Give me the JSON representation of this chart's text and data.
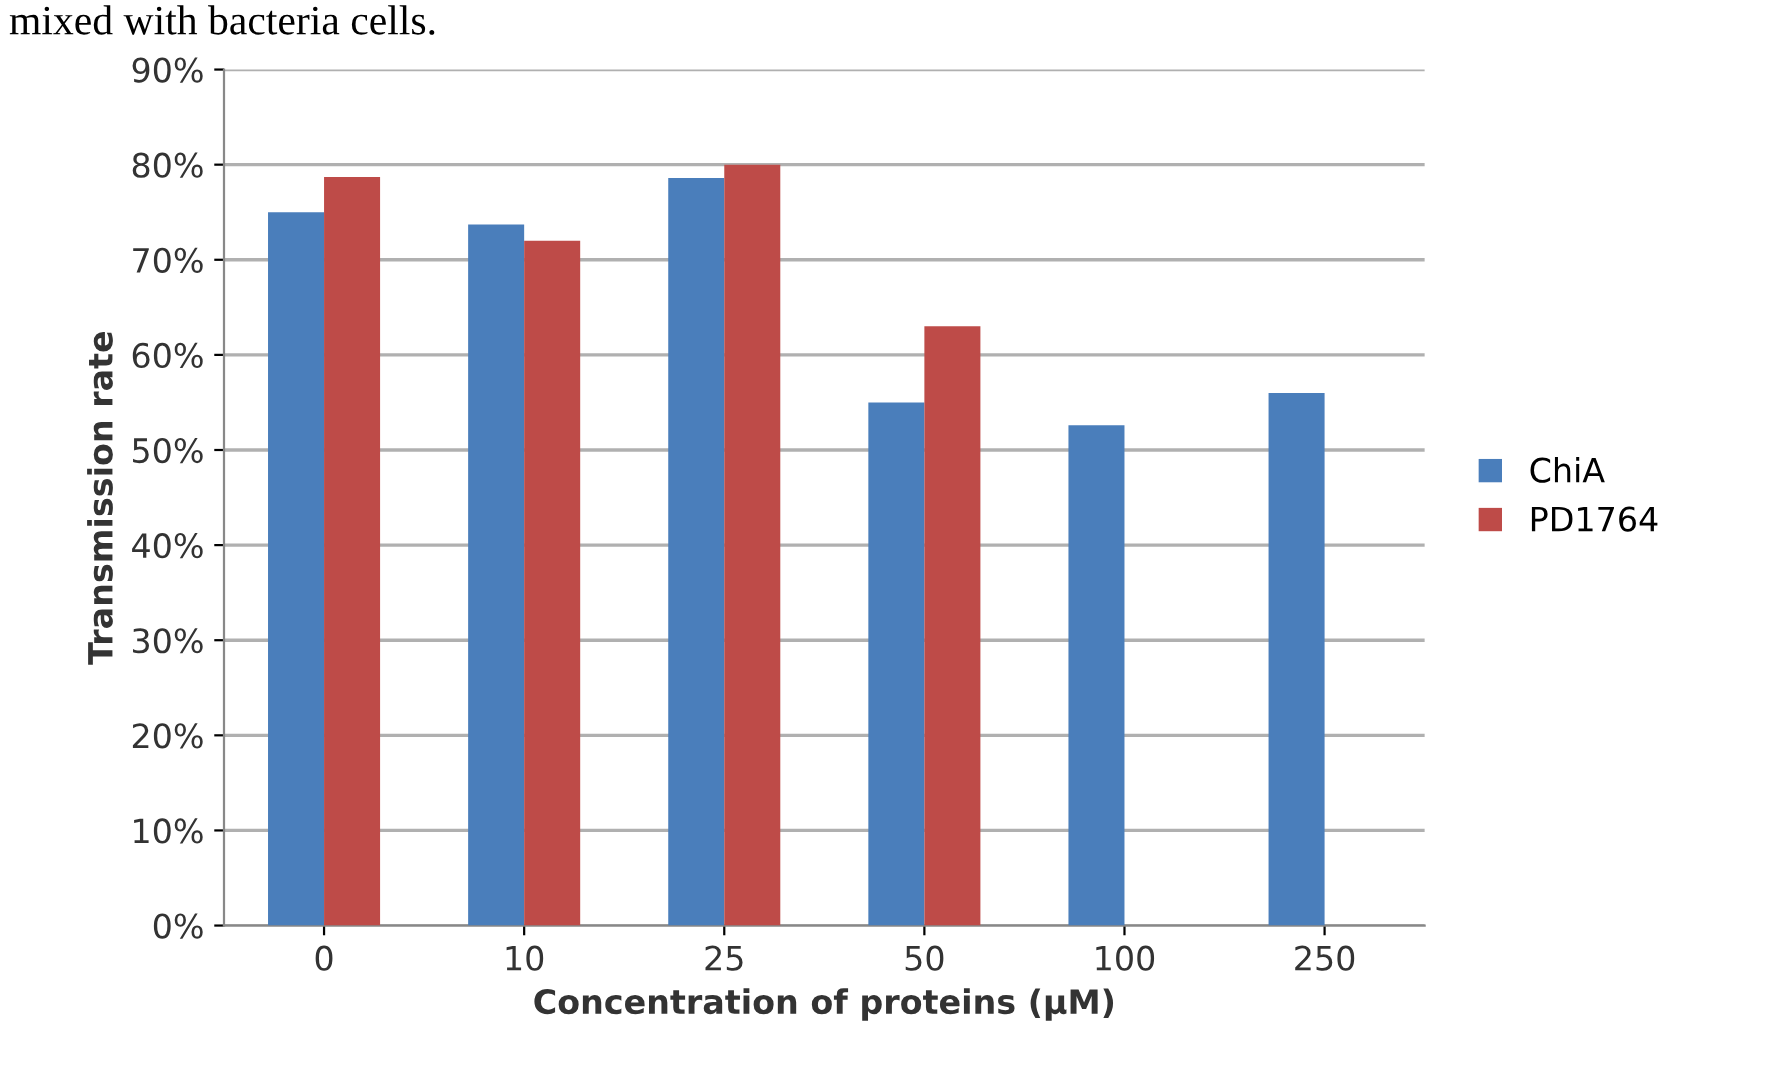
{
  "chart_data": {
    "type": "bar",
    "xlabel": "Concentration of proteins (μM)",
    "ylabel": "Transmission rate",
    "annotations": [
      "mixed with bacteria cells."
    ],
    "categories": [
      "0",
      "10",
      "25",
      "50",
      "100",
      "250"
    ],
    "series": [
      {
        "name": "ChiA",
        "color": "#4a7ebb",
        "values": [
          75,
          73.7,
          78.6,
          55,
          52.6,
          56
        ]
      },
      {
        "name": "PD1764",
        "color": "#be4b48",
        "values": [
          78.7,
          72,
          80,
          63,
          null,
          null
        ]
      }
    ],
    "ylim": [
      0,
      90
    ],
    "yticks": [
      {
        "value": 0,
        "label": "0%"
      },
      {
        "value": 10,
        "label": "10%"
      },
      {
        "value": 20,
        "label": "20%"
      },
      {
        "value": 30,
        "label": "30%"
      },
      {
        "value": 40,
        "label": "40%"
      },
      {
        "value": 50,
        "label": "50%"
      },
      {
        "value": 60,
        "label": "60%"
      },
      {
        "value": 70,
        "label": "70%"
      },
      {
        "value": 80,
        "label": "80%"
      },
      {
        "value": 90,
        "label": "90%"
      }
    ],
    "grid": "y",
    "legend": "right"
  }
}
